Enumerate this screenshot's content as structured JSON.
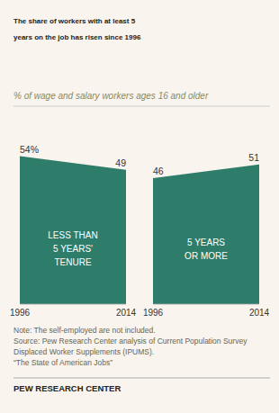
{
  "title": "The share of workers with at least 5\nyears on the job has risen since 1996",
  "subtitle": "% of wage and salary workers ages 16 and older",
  "notes": [
    "Note: The self-employed are not included.",
    "Source: Pew Research Center analysis of Current Population Survey",
    "Displaced Worker Supplements (IPUMS).",
    "“The State of American Jobs”"
  ],
  "footer": "PEW RESEARCH CENTER",
  "chart_data": [
    {
      "type": "area",
      "annotation": "LESS THAN\n5 YEARS'\nTENURE",
      "x": [
        1996,
        2014
      ],
      "values": [
        54,
        49
      ],
      "value_labels": [
        "54%",
        "49"
      ],
      "color": "#2E7D6B",
      "xlim": [
        1996,
        2014
      ],
      "xticks": [
        1996,
        2014
      ],
      "ylim": [
        0,
        65
      ],
      "data_labels": true,
      "tick_labels": "x",
      "grid": false
    },
    {
      "type": "area",
      "annotation": "5 YEARS\nOR MORE",
      "x": [
        1996,
        2014
      ],
      "values": [
        46,
        51
      ],
      "color": "#2E7D6B",
      "xlim": [
        1996,
        2014
      ],
      "xticks": [
        1996,
        2014
      ],
      "ylim": [
        0,
        65
      ],
      "data_labels": true,
      "tick_labels": "x",
      "grid": false
    }
  ]
}
